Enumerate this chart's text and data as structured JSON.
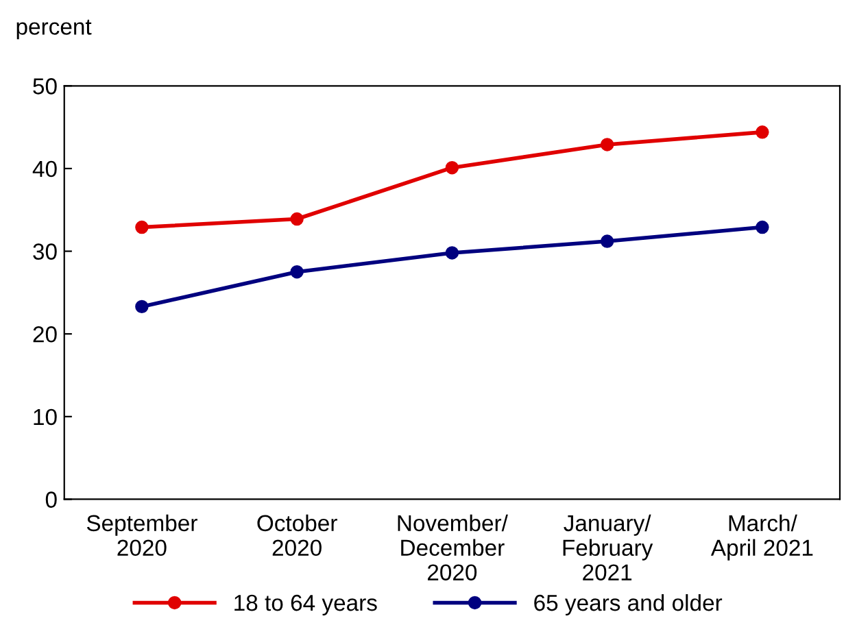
{
  "chart_data": {
    "type": "line",
    "ylabel": "percent",
    "categories": [
      "September\n2020",
      "October\n2020",
      "November/\nDecember\n2020",
      "January/\nFebruary\n2021",
      "March/\nApril 2021"
    ],
    "series": [
      {
        "name": "18 to 64 years",
        "color": "#e00000",
        "values": [
          32.9,
          33.9,
          40.1,
          42.9,
          44.4
        ]
      },
      {
        "name": "65 years and older",
        "color": "#00007f",
        "values": [
          23.3,
          27.5,
          29.8,
          31.2,
          32.9
        ]
      }
    ],
    "ylim": [
      0,
      50
    ],
    "yticks": [
      0,
      10,
      20,
      30,
      40,
      50
    ],
    "grid": false,
    "legend": "bottom",
    "marker": "circle",
    "line_style": "solid"
  }
}
